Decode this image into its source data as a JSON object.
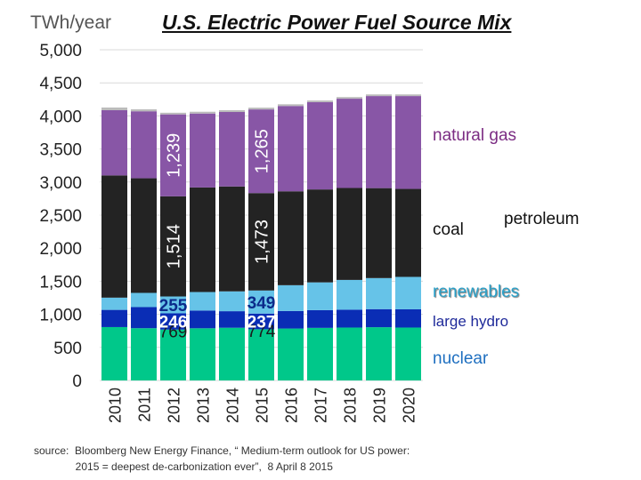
{
  "chart_data": {
    "type": "bar",
    "stacked": true,
    "title": "U.S. Electric Power Fuel Source Mix",
    "ylabel": "TWh/year",
    "ylim": [
      0,
      5000
    ],
    "yticks": [
      "0",
      "500",
      "1,000",
      "1,500",
      "2,000",
      "2,500",
      "3,000",
      "3,500",
      "4,000",
      "4,500",
      "5,000"
    ],
    "categories": [
      "2010",
      "2011",
      "2012",
      "2013",
      "2014",
      "2015",
      "2016",
      "2017",
      "2018",
      "2019",
      "2020"
    ],
    "grid": true,
    "series": [
      {
        "name": "nuclear",
        "color": "#00c88a",
        "values": [
          807,
          790,
          769,
          789,
          797,
          774,
          785,
          795,
          800,
          805,
          800
        ]
      },
      {
        "name": "large hydro",
        "color": "#0a2db5",
        "values": [
          260,
          319,
          246,
          268,
          250,
          237,
          265,
          268,
          270,
          273,
          276
        ]
      },
      {
        "name": "renewables",
        "color": "#66c3e8",
        "values": [
          185,
          215,
          255,
          280,
          300,
          349,
          390,
          420,
          450,
          470,
          490
        ]
      },
      {
        "name": "coal",
        "color": "#232323",
        "values": [
          1848,
          1733,
          1514,
          1581,
          1586,
          1473,
          1420,
          1405,
          1390,
          1360,
          1330
        ]
      },
      {
        "name": "natural gas",
        "color": "#8856a6",
        "values": [
          987,
          1013,
          1239,
          1118,
          1126,
          1265,
          1290,
          1320,
          1350,
          1392,
          1404
        ]
      },
      {
        "name": "petroleum",
        "color": "#bbbbbb",
        "values": [
          40,
          30,
          25,
          27,
          28,
          27,
          26,
          25,
          25,
          25,
          25
        ]
      }
    ],
    "data_labels": [
      {
        "series": "nuclear",
        "category": "2012",
        "text": "769"
      },
      {
        "series": "nuclear",
        "category": "2015",
        "text": "774"
      },
      {
        "series": "large hydro",
        "category": "2012",
        "text": "246"
      },
      {
        "series": "large hydro",
        "category": "2015",
        "text": "237"
      },
      {
        "series": "renewables",
        "category": "2012",
        "text": "255"
      },
      {
        "series": "renewables",
        "category": "2015",
        "text": "349"
      },
      {
        "series": "coal",
        "category": "2012",
        "text": "1,514"
      },
      {
        "series": "coal",
        "category": "2015",
        "text": "1,473"
      },
      {
        "series": "natural gas",
        "category": "2012",
        "text": "1,239"
      },
      {
        "series": "natural gas",
        "category": "2015",
        "text": "1,265"
      }
    ]
  },
  "legend": {
    "natural_gas": "natural gas",
    "coal": "coal",
    "petroleum": "petroleum",
    "renewables": "renewables",
    "large_hydro": "large hydro",
    "nuclear": "nuclear"
  },
  "source": "source:  Bloomberg New Energy Finance, “ Medium-term outlook for US power:\n              2015 = deepest de-carbonization ever”,  8 April 8 2015"
}
